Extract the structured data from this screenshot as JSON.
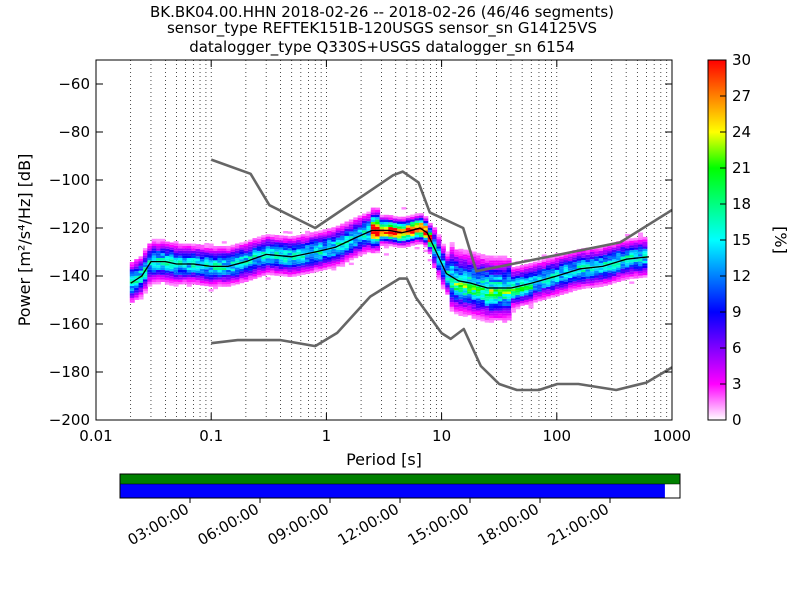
{
  "chart_data": {
    "type": "heatmap",
    "title_lines": [
      "BK.BK04.00.HHN   2018-02-26 -- 2018-02-26  (46/46 segments)",
      "sensor_type REFTEK151B-120USGS sensor_sn G14125VS",
      "datalogger_type Q330S+USGS datalogger_sn 6154"
    ],
    "xlabel": "Period [s]",
    "ylabel": "Power [m²/s⁴/Hz] [dB]",
    "x_scale": "log",
    "xlim": [
      0.01,
      1000
    ],
    "ylim": [
      -200,
      -50
    ],
    "x_ticks": [
      {
        "v": 0.01,
        "label": "0.01"
      },
      {
        "v": 0.1,
        "label": "0.1"
      },
      {
        "v": 1,
        "label": "1"
      },
      {
        "v": 10,
        "label": "10"
      },
      {
        "v": 100,
        "label": "100"
      },
      {
        "v": 1000,
        "label": "1000"
      }
    ],
    "y_ticks": [
      {
        "v": -60,
        "label": "−60"
      },
      {
        "v": -80,
        "label": "−80"
      },
      {
        "v": -100,
        "label": "−100"
      },
      {
        "v": -120,
        "label": "−120"
      },
      {
        "v": -140,
        "label": "−140"
      },
      {
        "v": -160,
        "label": "−160"
      },
      {
        "v": -180,
        "label": "−180"
      },
      {
        "v": -200,
        "label": "−200"
      }
    ],
    "grid": "dotted, x only",
    "colorbar": {
      "label": "[%]",
      "range": [
        0,
        30
      ],
      "ticks": [
        {
          "v": 0,
          "label": "0"
        },
        {
          "v": 3,
          "label": "3"
        },
        {
          "v": 6,
          "label": "6"
        },
        {
          "v": 9,
          "label": "9"
        },
        {
          "v": 12,
          "label": "12"
        },
        {
          "v": 15,
          "label": "15"
        },
        {
          "v": 18,
          "label": "18"
        },
        {
          "v": 21,
          "label": "21"
        },
        {
          "v": 24,
          "label": "24"
        },
        {
          "v": 27,
          "label": "27"
        },
        {
          "v": 30,
          "label": "30"
        }
      ],
      "colors": [
        "#ffffff",
        "#ff00ff",
        "#8000ff",
        "#0000ff",
        "#0080ff",
        "#00ffff",
        "#00ff80",
        "#00ff00",
        "#ffff00",
        "#ff8000",
        "#ff0000"
      ]
    },
    "nhnm": {
      "name": "NHNM",
      "x": [
        0.1,
        0.22,
        0.32,
        0.8,
        3.8,
        4.6,
        6.3,
        7.9,
        15.4,
        20,
        354.8,
        1000
      ],
      "y": [
        -91.5,
        -97.4,
        -110.5,
        -120,
        -98,
        -96.5,
        -101,
        -113.5,
        -120,
        -138,
        -126,
        -112.5
      ]
    },
    "nlnm": {
      "name": "NLNM",
      "x": [
        0.1,
        0.17,
        0.4,
        0.8,
        1.24,
        2.4,
        4.3,
        5,
        6,
        10,
        12,
        15.6,
        21.9,
        31.6,
        45,
        70,
        101,
        154,
        328,
        600,
        1000
      ],
      "y": [
        -168,
        -166.7,
        -166.7,
        -169.2,
        -163.7,
        -148.6,
        -141.1,
        -141.1,
        -149,
        -163.8,
        -166.2,
        -162.1,
        -177.5,
        -185,
        -187.5,
        -187.5,
        -185,
        -185,
        -187.5,
        -184.4,
        -178.1
      ]
    },
    "mode_curve": {
      "name": "mode",
      "x": [
        0.02,
        0.025,
        0.03,
        0.04,
        0.05,
        0.07,
        0.1,
        0.14,
        0.2,
        0.3,
        0.5,
        0.8,
        1.2,
        1.8,
        2.5,
        3.5,
        4.5,
        5.5,
        6.5,
        7.5,
        9,
        11,
        14,
        18,
        25,
        40,
        60,
        100,
        160,
        250,
        400,
        630
      ],
      "y": [
        -143,
        -140,
        -134,
        -134,
        -135,
        -135,
        -136,
        -136,
        -134,
        -131,
        -132,
        -130,
        -128,
        -124,
        -121,
        -121,
        -122,
        -121,
        -120,
        -122,
        -130,
        -139,
        -142,
        -143,
        -145,
        -145,
        -143,
        -140,
        -137,
        -136,
        -133,
        -132
      ]
    },
    "availability": {
      "time_ticks": [
        "03:00:00",
        "06:00:00",
        "09:00:00",
        "12:00:00",
        "15:00:00",
        "18:00:00",
        "21:00:00"
      ],
      "green_bar": "full day of data",
      "blue_bar_fraction": 0.973
    }
  }
}
